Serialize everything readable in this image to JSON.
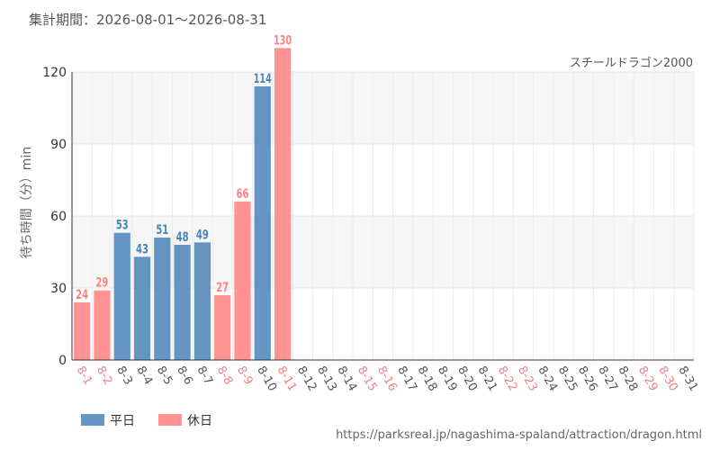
{
  "chart_data": {
    "type": "bar",
    "title": "集計期間：2026-08-01～2026-08-31",
    "subtitle": "スチールドラゴン2000",
    "ylabel": "待ち時間（分）min",
    "xlabel": "",
    "ylim": [
      0,
      130
    ],
    "yticks": [
      0,
      30,
      60,
      90,
      120
    ],
    "grid": true,
    "legend_position": "bottom-left",
    "categories": [
      "8-1",
      "8-2",
      "8-3",
      "8-4",
      "8-5",
      "8-6",
      "8-7",
      "8-8",
      "8-9",
      "8-10",
      "8-11",
      "8-12",
      "8-13",
      "8-14",
      "8-15",
      "8-16",
      "8-17",
      "8-18",
      "8-19",
      "8-20",
      "8-21",
      "8-22",
      "8-23",
      "8-24",
      "8-25",
      "8-26",
      "8-27",
      "8-28",
      "8-29",
      "8-30",
      "8-31"
    ],
    "day_type": [
      "h",
      "h",
      "w",
      "w",
      "w",
      "w",
      "w",
      "h",
      "h",
      "w",
      "h",
      "w",
      "w",
      "w",
      "h",
      "h",
      "w",
      "w",
      "w",
      "w",
      "w",
      "h",
      "h",
      "w",
      "w",
      "w",
      "w",
      "w",
      "h",
      "h",
      "w"
    ],
    "values": [
      24,
      29,
      53,
      43,
      51,
      48,
      49,
      27,
      66,
      114,
      130,
      null,
      null,
      null,
      null,
      null,
      null,
      null,
      null,
      null,
      null,
      null,
      null,
      null,
      null,
      null,
      null,
      null,
      null,
      null,
      null
    ],
    "series": [
      {
        "name": "平日",
        "key": "w",
        "color": "#4a84b8"
      },
      {
        "name": "休日",
        "key": "h",
        "color": "#ff8080"
      }
    ],
    "holiday_label_color": "#f08080",
    "weekday_label_color": "#555555",
    "source": "https://parksreal.jp/nagashima-spaland/attraction/dragon.html"
  }
}
